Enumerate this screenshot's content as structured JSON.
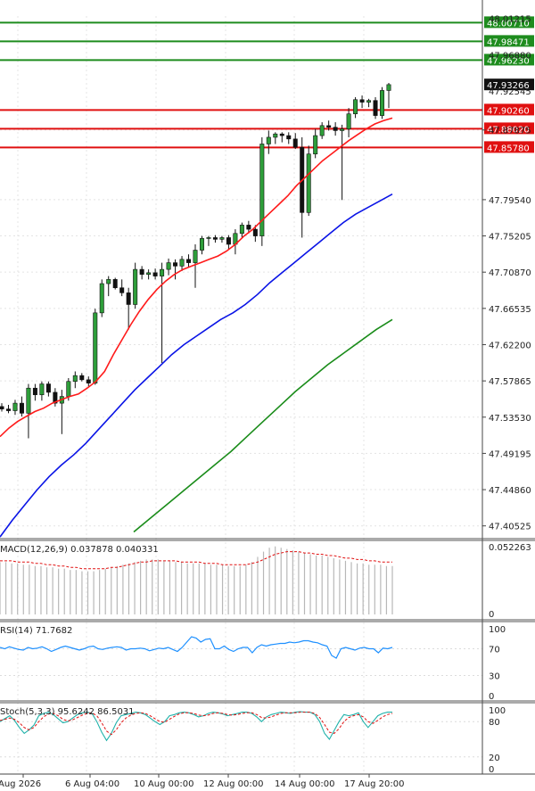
{
  "chart_data": {
    "type": "candlestick",
    "price_axis": {
      "labels": [
        "47.87875",
        "47.79540",
        "47.75205",
        "47.70870",
        "47.66535",
        "47.62200",
        "47.57865",
        "47.53530",
        "47.49195",
        "47.44860",
        "47.40525"
      ],
      "top_cut_labels": [
        "48.01215",
        "47.96880",
        "47.92545"
      ]
    },
    "time_axis": {
      "labels": [
        "Aug 2026",
        "6 Aug 04:00",
        "10 Aug 00:00",
        "12 Aug 00:00",
        "14 Aug 00:00",
        "17 Aug 20:00"
      ]
    },
    "current_price": "47.93266",
    "levels": [
      {
        "label": "48.00710",
        "value": 48.0071,
        "kind": "resistance",
        "color": "#1e8c1e"
      },
      {
        "label": "47.98471",
        "value": 47.98471,
        "kind": "resistance",
        "color": "#1e8c1e"
      },
      {
        "label": "47.96230",
        "value": 47.9623,
        "kind": "resistance",
        "color": "#1e8c1e"
      },
      {
        "label": "47.90260",
        "value": 47.9026,
        "kind": "support",
        "color": "#e01010"
      },
      {
        "label": "47.88020",
        "value": 47.8802,
        "kind": "support",
        "color": "#e01010"
      },
      {
        "label": "47.85780",
        "value": 47.8578,
        "kind": "support",
        "color": "#e01010"
      }
    ],
    "candles": [
      [
        47.548,
        47.552,
        47.542,
        47.545
      ],
      [
        47.545,
        47.55,
        47.54,
        47.543
      ],
      [
        47.543,
        47.556,
        47.538,
        47.552
      ],
      [
        47.552,
        47.56,
        47.536,
        47.54
      ],
      [
        47.54,
        47.575,
        47.51,
        47.57
      ],
      [
        47.57,
        47.575,
        47.555,
        47.562
      ],
      [
        47.562,
        47.578,
        47.555,
        47.575
      ],
      [
        47.575,
        47.578,
        47.56,
        47.565
      ],
      [
        47.565,
        47.57,
        47.548,
        47.552
      ],
      [
        47.552,
        47.568,
        47.515,
        47.56
      ],
      [
        47.56,
        47.582,
        47.555,
        47.578
      ],
      [
        47.578,
        47.59,
        47.57,
        47.585
      ],
      [
        47.585,
        47.588,
        47.578,
        47.58
      ],
      [
        47.58,
        47.584,
        47.572,
        47.576
      ],
      [
        47.576,
        47.665,
        47.574,
        47.66
      ],
      [
        47.66,
        47.7,
        47.655,
        47.695
      ],
      [
        47.695,
        47.704,
        47.68,
        47.7
      ],
      [
        47.7,
        47.702,
        47.688,
        47.69
      ],
      [
        47.69,
        47.7,
        47.68,
        47.684
      ],
      [
        47.684,
        47.69,
        47.64,
        47.67
      ],
      [
        47.67,
        47.72,
        47.665,
        47.712
      ],
      [
        47.712,
        47.716,
        47.7,
        47.706
      ],
      [
        47.706,
        47.712,
        47.7,
        47.708
      ],
      [
        47.708,
        47.713,
        47.7,
        47.704
      ],
      [
        47.704,
        47.72,
        47.6,
        47.712
      ],
      [
        47.712,
        47.725,
        47.705,
        47.72
      ],
      [
        47.72,
        47.724,
        47.7,
        47.716
      ],
      [
        47.716,
        47.728,
        47.71,
        47.724
      ],
      [
        47.724,
        47.73,
        47.714,
        47.72
      ],
      [
        47.72,
        47.742,
        47.69,
        47.735
      ],
      [
        47.735,
        47.752,
        47.73,
        47.749
      ],
      [
        47.749,
        47.752,
        47.74,
        47.75
      ],
      [
        47.75,
        47.753,
        47.744,
        47.748
      ],
      [
        47.748,
        47.752,
        47.744,
        47.75
      ],
      [
        47.75,
        47.753,
        47.736,
        47.742
      ],
      [
        47.742,
        47.76,
        47.73,
        47.755
      ],
      [
        47.755,
        47.768,
        47.75,
        47.765
      ],
      [
        47.765,
        47.77,
        47.755,
        47.76
      ],
      [
        47.76,
        47.765,
        47.745,
        47.752
      ],
      [
        47.752,
        47.87,
        47.74,
        47.862
      ],
      [
        47.862,
        47.878,
        47.85,
        47.87
      ],
      [
        47.87,
        47.876,
        47.862,
        47.874
      ],
      [
        47.874,
        47.876,
        47.864,
        47.872
      ],
      [
        47.872,
        47.876,
        47.862,
        47.868
      ],
      [
        47.868,
        47.875,
        47.856,
        47.858
      ],
      [
        47.858,
        47.87,
        47.75,
        47.78
      ],
      [
        47.78,
        47.86,
        47.776,
        47.85
      ],
      [
        47.85,
        47.88,
        47.845,
        47.872
      ],
      [
        47.872,
        47.888,
        47.868,
        47.884
      ],
      [
        47.884,
        47.89,
        47.878,
        47.882
      ],
      [
        47.882,
        47.888,
        47.872,
        47.878
      ],
      [
        47.878,
        47.885,
        47.795,
        47.88
      ],
      [
        47.88,
        47.905,
        47.87,
        47.898
      ],
      [
        47.898,
        47.918,
        47.893,
        47.915
      ],
      [
        47.915,
        47.92,
        47.905,
        47.912
      ],
      [
        47.912,
        47.916,
        47.906,
        47.914
      ],
      [
        47.914,
        47.918,
        47.892,
        47.896
      ],
      [
        47.896,
        47.93,
        47.892,
        47.926
      ],
      [
        47.926,
        47.935,
        47.905,
        47.933
      ]
    ],
    "moving_averages": [
      {
        "name": "fast",
        "color": "#ff1a1a",
        "values": [
          47.512,
          47.522,
          47.53,
          47.536,
          47.542,
          47.546,
          47.552,
          47.556,
          47.56,
          47.563,
          47.57,
          47.578,
          47.59,
          47.61,
          47.628,
          47.646,
          47.662,
          47.676,
          47.688,
          47.698,
          47.706,
          47.712,
          47.716,
          47.72,
          47.724,
          47.728,
          47.734,
          47.742,
          47.752,
          47.76,
          47.77,
          47.78,
          47.79,
          47.8,
          47.812,
          47.822,
          47.832,
          47.842,
          47.85,
          47.858,
          47.866,
          47.873,
          47.88,
          47.886,
          47.89,
          47.893
        ]
      },
      {
        "name": "medium",
        "color": "#0a14e6",
        "values": [
          47.392,
          47.412,
          47.43,
          47.448,
          47.464,
          47.478,
          47.49,
          47.504,
          47.52,
          47.536,
          47.552,
          47.568,
          47.582,
          47.596,
          47.61,
          47.622,
          47.632,
          47.642,
          47.652,
          47.66,
          47.67,
          47.682,
          47.696,
          47.708,
          47.72,
          47.732,
          47.744,
          47.756,
          47.768,
          47.778,
          47.786,
          47.794,
          47.802
        ]
      },
      {
        "name": "slow",
        "color": "#1a8c1a",
        "values": [
          47.398,
          47.414,
          47.43,
          47.446,
          47.462,
          47.478,
          47.494,
          47.512,
          47.53,
          47.548,
          47.566,
          47.582,
          47.598,
          47.612,
          47.626,
          47.64,
          47.652
        ]
      }
    ],
    "macd": {
      "title": "MACD(12,26,9) 0.037878 0.040331",
      "top_label": "0.052263",
      "zero_label": "0",
      "histogram": [
        0.04,
        0.04,
        0.039,
        0.039,
        0.038,
        0.038,
        0.037,
        0.037,
        0.036,
        0.036,
        0.035,
        0.035,
        0.034,
        0.034,
        0.033,
        0.033,
        0.033,
        0.034,
        0.035,
        0.036,
        0.037,
        0.038,
        0.039,
        0.04,
        0.041,
        0.042,
        0.042,
        0.042,
        0.041,
        0.041,
        0.04,
        0.04,
        0.039,
        0.039,
        0.039,
        0.039,
        0.038,
        0.038,
        0.038,
        0.037,
        0.037,
        0.037,
        0.038,
        0.04,
        0.044,
        0.048,
        0.051,
        0.052,
        0.051,
        0.05,
        0.049,
        0.048,
        0.047,
        0.046,
        0.045,
        0.045,
        0.044,
        0.043,
        0.042,
        0.041,
        0.04,
        0.039,
        0.039,
        0.038,
        0.038,
        0.038,
        0.037,
        0.037
      ],
      "signal": [
        0.041,
        0.041,
        0.041,
        0.04,
        0.04,
        0.04,
        0.039,
        0.039,
        0.038,
        0.038,
        0.037,
        0.037,
        0.036,
        0.036,
        0.035,
        0.035,
        0.035,
        0.035,
        0.035,
        0.036,
        0.036,
        0.037,
        0.038,
        0.039,
        0.04,
        0.04,
        0.041,
        0.041,
        0.041,
        0.041,
        0.041,
        0.04,
        0.04,
        0.04,
        0.04,
        0.039,
        0.039,
        0.039,
        0.038,
        0.038,
        0.038,
        0.038,
        0.038,
        0.039,
        0.04,
        0.042,
        0.044,
        0.046,
        0.047,
        0.048,
        0.048,
        0.048,
        0.047,
        0.047,
        0.046,
        0.046,
        0.045,
        0.045,
        0.044,
        0.043,
        0.043,
        0.042,
        0.042,
        0.041,
        0.041,
        0.04,
        0.04,
        0.04
      ]
    },
    "rsi": {
      "title": "RSI(14) 71.7682",
      "levels": [
        "100",
        "70",
        "30",
        "0"
      ],
      "values": [
        72,
        70,
        73,
        71,
        69,
        68,
        72,
        70,
        71,
        73,
        70,
        66,
        69,
        72,
        74,
        72,
        70,
        68,
        70,
        73,
        74,
        70,
        69,
        71,
        72,
        73,
        72,
        68,
        70,
        70,
        71,
        70,
        67,
        69,
        71,
        70,
        72,
        69,
        66,
        72,
        80,
        88,
        86,
        80,
        84,
        85,
        70,
        70,
        74,
        69,
        66,
        70,
        72,
        72,
        64,
        72,
        76,
        74,
        76,
        77,
        78,
        78,
        80,
        79,
        80,
        82,
        82,
        80,
        79,
        76,
        74,
        60,
        56,
        70,
        72,
        70,
        68,
        71,
        72,
        70,
        70,
        64,
        71,
        70,
        72
      ]
    },
    "stochastic": {
      "title": "Stoch(5,3,3) 95.6242 86.5031",
      "levels": [
        "100",
        "80",
        "20",
        "0"
      ],
      "k": [
        80,
        85,
        90,
        82,
        70,
        60,
        66,
        74,
        90,
        94,
        96,
        92,
        85,
        78,
        80,
        86,
        92,
        95,
        96,
        94,
        80,
        62,
        48,
        60,
        78,
        90,
        92,
        94,
        96,
        95,
        92,
        86,
        80,
        75,
        80,
        90,
        92,
        95,
        96,
        95,
        92,
        88,
        90,
        94,
        96,
        95,
        93,
        90,
        92,
        94,
        96,
        96,
        94,
        88,
        80,
        88,
        92,
        94,
        96,
        95,
        94,
        96,
        97,
        96,
        96,
        92,
        80,
        60,
        50,
        65,
        80,
        92,
        90,
        92,
        95,
        80,
        70,
        80,
        90,
        94,
        96,
        96
      ],
      "d": [
        82,
        84,
        86,
        84,
        78,
        70,
        66,
        70,
        80,
        88,
        93,
        94,
        90,
        84,
        81,
        83,
        87,
        91,
        94,
        95,
        90,
        78,
        64,
        58,
        66,
        78,
        86,
        91,
        94,
        95,
        94,
        90,
        85,
        80,
        79,
        84,
        89,
        93,
        95,
        95,
        94,
        91,
        90,
        91,
        94,
        95,
        94,
        92,
        91,
        92,
        94,
        95,
        95,
        92,
        87,
        86,
        88,
        91,
        94,
        95,
        95,
        95,
        96,
        96,
        96,
        94,
        87,
        75,
        62,
        60,
        68,
        80,
        87,
        90,
        92,
        88,
        80,
        77,
        82,
        88,
        92,
        94
      ]
    }
  }
}
